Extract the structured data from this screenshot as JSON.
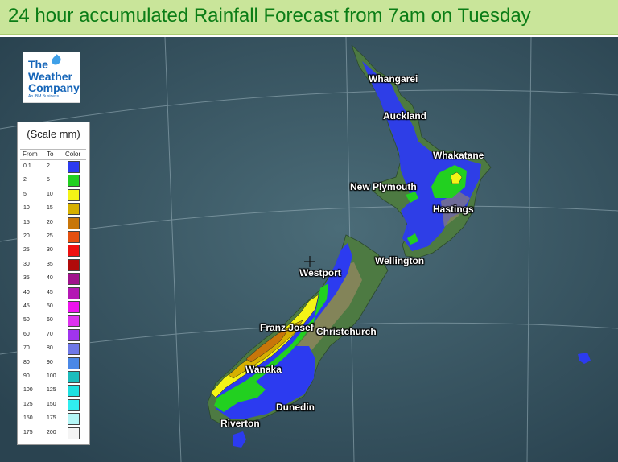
{
  "title": "24 hour accumulated Rainfall Forecast from 7am on Tuesday",
  "logo": {
    "line1": "The",
    "line2": "Weather",
    "line3": "Company",
    "line4": "An IBM Business"
  },
  "legend": {
    "title": "(Scale mm)",
    "headers": {
      "from": "From",
      "to": "To",
      "color": "Color"
    },
    "rows": [
      {
        "from": "0.1",
        "to": "2",
        "color": "#2c3bf0"
      },
      {
        "from": "2",
        "to": "5",
        "color": "#22d020"
      },
      {
        "from": "5",
        "to": "10",
        "color": "#f4f416"
      },
      {
        "from": "10",
        "to": "15",
        "color": "#d6b000"
      },
      {
        "from": "15",
        "to": "20",
        "color": "#c8760a"
      },
      {
        "from": "20",
        "to": "25",
        "color": "#e45010"
      },
      {
        "from": "25",
        "to": "30",
        "color": "#ee1010"
      },
      {
        "from": "30",
        "to": "35",
        "color": "#b00a0a"
      },
      {
        "from": "35",
        "to": "40",
        "color": "#a0128c"
      },
      {
        "from": "40",
        "to": "45",
        "color": "#b418b4"
      },
      {
        "from": "45",
        "to": "50",
        "color": "#ee14ee"
      },
      {
        "from": "50",
        "to": "60",
        "color": "#dd32ee"
      },
      {
        "from": "60",
        "to": "70",
        "color": "#a034ee"
      },
      {
        "from": "70",
        "to": "80",
        "color": "#6e78e6"
      },
      {
        "from": "80",
        "to": "90",
        "color": "#4a88e6"
      },
      {
        "from": "90",
        "to": "100",
        "color": "#1cbcbc"
      },
      {
        "from": "100",
        "to": "125",
        "color": "#1ee0e0"
      },
      {
        "from": "125",
        "to": "150",
        "color": "#30eef0"
      },
      {
        "from": "150",
        "to": "175",
        "color": "#b4f6f6"
      },
      {
        "from": "175",
        "to": "200",
        "color": "#f4f4f4"
      }
    ]
  },
  "cities": {
    "whangarei": "Whangarei",
    "auckland": "Auckland",
    "whakatane": "Whakatane",
    "new_plymouth": "New Plymouth",
    "hastings": "Hastings",
    "wellington": "Wellington",
    "westport": "Westport",
    "franz_josef": "Franz Josef",
    "christchurch": "Christchurch",
    "wanaka": "Wanaka",
    "dunedin": "Dunedin",
    "riverton": "Riverton"
  },
  "colors": {
    "ocean": "#3d5a66",
    "land": "#4d7a42",
    "mountain": "#a08a66",
    "rain_light": "#2c3bf0",
    "rain_2_5": "#22d020",
    "rain_5_10": "#f4f416",
    "rain_10_15": "#d6b000",
    "rain_15_20": "#c8760a"
  }
}
